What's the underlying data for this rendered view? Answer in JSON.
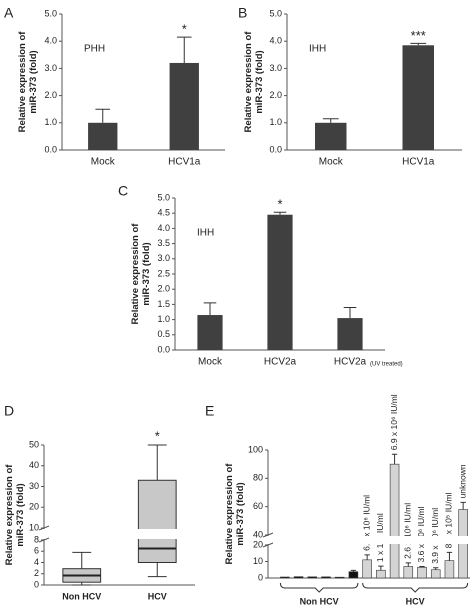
{
  "chart_data": [
    {
      "panel_label": "A",
      "type": "bar",
      "cell_line": "PHH",
      "ylabel": "Relative expression of miR-373 (fold)",
      "categories": [
        "Mock",
        "HCV1a"
      ],
      "values": [
        1.0,
        3.2
      ],
      "errors": [
        0.5,
        0.95
      ],
      "significance": [
        null,
        "*"
      ],
      "color": "#404040",
      "ylim": [
        0,
        5
      ],
      "yticks": [
        {
          "value": 0,
          "label": "0.0"
        },
        {
          "value": 1,
          "label": "1.0"
        },
        {
          "value": 2,
          "label": "2.0"
        },
        {
          "value": 3,
          "label": "3.0"
        },
        {
          "value": 4,
          "label": "4.0"
        },
        {
          "value": 5,
          "label": "5.0"
        }
      ]
    },
    {
      "panel_label": "B",
      "type": "bar",
      "cell_line": "IHH",
      "ylabel": "Relative expression of miR-373 (fold)",
      "categories": [
        "Mock",
        "HCV1a"
      ],
      "values": [
        1.0,
        3.85
      ],
      "errors": [
        0.15,
        0.07
      ],
      "significance": [
        null,
        "***"
      ],
      "color": "#404040",
      "ylim": [
        0,
        5
      ],
      "yticks": [
        {
          "value": 0,
          "label": "0.0"
        },
        {
          "value": 1,
          "label": "1.0"
        },
        {
          "value": 2,
          "label": "2.0"
        },
        {
          "value": 3,
          "label": "3.0"
        },
        {
          "value": 4,
          "label": "4.0"
        },
        {
          "value": 5,
          "label": "5.0"
        }
      ]
    },
    {
      "panel_label": "C",
      "type": "bar",
      "cell_line": "IHH",
      "ylabel": "Relative expression of miR-373 (fold)",
      "categories": [
        "Mock",
        "HCV2a",
        "HCV2a"
      ],
      "category_notes": [
        null,
        null,
        "(UV treated)"
      ],
      "values": [
        1.15,
        4.45,
        1.05
      ],
      "errors": [
        0.4,
        0.08,
        0.35
      ],
      "significance": [
        null,
        "*",
        null
      ],
      "color": "#404040",
      "ylim": [
        0,
        5
      ],
      "yticks": [
        {
          "value": 0,
          "label": "0.0"
        },
        {
          "value": 0.5,
          "label": "0.5"
        },
        {
          "value": 1,
          "label": "1.0"
        },
        {
          "value": 1.5,
          "label": "1.5"
        },
        {
          "value": 2,
          "label": "2.0"
        },
        {
          "value": 2.5,
          "label": "2.5"
        },
        {
          "value": 3,
          "label": "3.0"
        },
        {
          "value": 3.5,
          "label": "3.5"
        },
        {
          "value": 4,
          "label": "4.0"
        },
        {
          "value": 4.5,
          "label": "4.5"
        },
        {
          "value": 5,
          "label": "5.0"
        }
      ]
    },
    {
      "panel_label": "D",
      "type": "box",
      "ylabel": "Relative expression of miR-373 (fold)",
      "categories": [
        "Non HCV",
        "HCV"
      ],
      "min": [
        0,
        1.5
      ],
      "q1": [
        0.5,
        4
      ],
      "median": [
        1.7,
        6.5
      ],
      "q3": [
        2.9,
        33
      ],
      "max": [
        5.8,
        50
      ],
      "significance": [
        null,
        "*"
      ],
      "color": "#c8c8c8",
      "ylim": [
        0,
        50
      ],
      "ybreak": [
        8,
        10
      ],
      "yticks": [
        0,
        2,
        4,
        6,
        8,
        10,
        20,
        30,
        40,
        50
      ]
    },
    {
      "panel_label": "E",
      "type": "bar",
      "ylabel": "Relative expression of miR-373 (fold)",
      "series": [
        {
          "name": "Non HCV",
          "color": "#111111",
          "values": [
            0.6,
            0.8,
            0.7,
            0.7,
            0.5,
            3.8
          ],
          "errors": [
            null,
            null,
            null,
            null,
            null,
            0.8
          ]
        },
        {
          "name": "HCV",
          "color": "#d4d4d4",
          "values": [
            11,
            4.7,
            90,
            7,
            6.5,
            5,
            10.5,
            58
          ],
          "errors": [
            3,
            2.5,
            7,
            2.2,
            0.5,
            1.2,
            5,
            5
          ],
          "labels": [
            "6.6 x 10⁶ IU/ml",
            "1 x 10⁶ IU/ml",
            "6.9 x 10⁶ IU/ml",
            "2.6 x 10⁶ IU/ml",
            "3.6 x 10⁶ IU/ml",
            "3.9 x 10⁶ IU/ml",
            "8.5 x 10⁵ IU/ml",
            "unknown"
          ]
        }
      ],
      "ylim": [
        0,
        100
      ],
      "ybreak": [
        20,
        40
      ],
      "yticks": [
        0,
        10,
        20,
        40,
        60,
        80,
        100
      ]
    }
  ]
}
